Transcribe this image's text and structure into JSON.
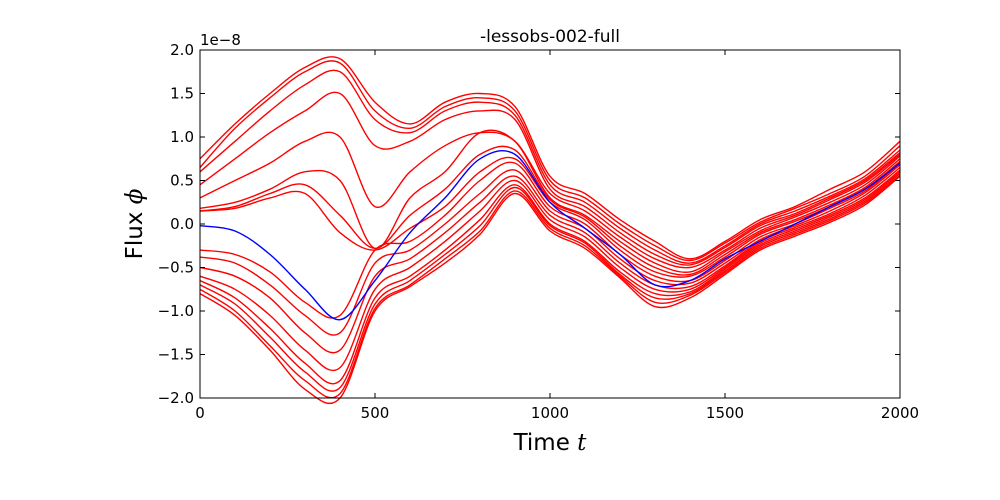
{
  "chart_data": {
    "type": "line",
    "title": "-lessobs-002-full",
    "xlabel": "Time",
    "xlabel_var": "t",
    "ylabel": "Flux",
    "ylabel_var": "ϕ",
    "y_offset_label": "1e−8",
    "xlim": [
      0,
      2000
    ],
    "ylim": [
      -2.0,
      2.0
    ],
    "x_ticks": [
      "0",
      "500",
      "1000",
      "1500",
      "2000"
    ],
    "y_ticks": [
      "−2.0",
      "−1.5",
      "−1.0",
      "−0.5",
      "0.0",
      "0.5",
      "1.0",
      "1.5",
      "2.0"
    ],
    "grid": false,
    "colors": {
      "reference": "#0000ff",
      "ensemble": "#ff0000"
    },
    "x": [
      0,
      100,
      200,
      300,
      400,
      500,
      600,
      700,
      800,
      900,
      1000,
      1100,
      1200,
      1300,
      1400,
      1500,
      1600,
      1700,
      1800,
      1900,
      2000
    ],
    "series": [
      {
        "role": "reference",
        "values": [
          -0.02,
          -0.08,
          -0.35,
          -0.75,
          -1.1,
          -0.65,
          -0.1,
          0.3,
          0.75,
          0.8,
          0.25,
          -0.05,
          -0.35,
          -0.7,
          -0.65,
          -0.4,
          -0.2,
          0.0,
          0.2,
          0.4,
          0.7
        ]
      },
      {
        "role": "ensemble",
        "values": [
          0.75,
          1.15,
          1.5,
          1.8,
          1.9,
          1.4,
          1.15,
          1.4,
          1.5,
          1.35,
          0.55,
          0.35,
          0.05,
          -0.2,
          -0.4,
          -0.2,
          0.05,
          0.2,
          0.4,
          0.6,
          0.95
        ]
      },
      {
        "role": "ensemble",
        "values": [
          0.65,
          1.1,
          1.45,
          1.75,
          1.85,
          1.3,
          1.1,
          1.35,
          1.45,
          1.3,
          0.5,
          0.3,
          0.0,
          -0.25,
          -0.42,
          -0.22,
          0.02,
          0.18,
          0.35,
          0.55,
          0.9
        ]
      },
      {
        "role": "ensemble",
        "values": [
          0.6,
          0.95,
          1.3,
          1.6,
          1.75,
          1.2,
          1.05,
          1.3,
          1.4,
          1.25,
          0.45,
          0.25,
          -0.05,
          -0.3,
          -0.45,
          -0.25,
          0.0,
          0.15,
          0.32,
          0.52,
          0.85
        ]
      },
      {
        "role": "ensemble",
        "values": [
          0.45,
          0.75,
          1.05,
          1.3,
          1.5,
          0.9,
          0.95,
          1.2,
          1.3,
          1.2,
          0.4,
          0.2,
          -0.1,
          -0.35,
          -0.47,
          -0.27,
          -0.02,
          0.12,
          0.3,
          0.5,
          0.82
        ]
      },
      {
        "role": "ensemble",
        "values": [
          0.3,
          0.5,
          0.7,
          0.95,
          1.0,
          0.2,
          0.6,
          0.9,
          1.05,
          0.95,
          0.35,
          0.15,
          -0.15,
          -0.4,
          -0.5,
          -0.3,
          -0.05,
          0.1,
          0.28,
          0.48,
          0.8
        ]
      },
      {
        "role": "ensemble",
        "values": [
          0.18,
          0.25,
          0.4,
          0.6,
          0.5,
          -0.28,
          0.3,
          0.6,
          1.05,
          0.95,
          0.3,
          0.1,
          -0.2,
          -0.45,
          -0.55,
          -0.32,
          -0.08,
          0.08,
          0.25,
          0.45,
          0.78
        ]
      },
      {
        "role": "ensemble",
        "values": [
          0.15,
          0.2,
          0.35,
          0.45,
          0.1,
          -0.28,
          0.1,
          0.4,
          0.8,
          0.85,
          0.28,
          0.08,
          -0.25,
          -0.5,
          -0.58,
          -0.35,
          -0.1,
          0.05,
          0.22,
          0.42,
          0.75
        ]
      },
      {
        "role": "ensemble",
        "values": [
          0.15,
          0.18,
          0.3,
          0.35,
          -0.1,
          -0.3,
          -0.05,
          0.2,
          0.6,
          0.75,
          0.25,
          0.05,
          -0.3,
          -0.55,
          -0.6,
          -0.38,
          -0.12,
          0.03,
          0.2,
          0.4,
          0.72
        ]
      },
      {
        "role": "ensemble",
        "values": [
          -0.3,
          -0.35,
          -0.55,
          -0.9,
          -1.05,
          -0.3,
          -0.2,
          0.1,
          0.5,
          0.7,
          0.2,
          0.0,
          -0.35,
          -0.6,
          -0.65,
          -0.42,
          -0.15,
          0.0,
          0.18,
          0.38,
          0.7
        ]
      },
      {
        "role": "ensemble",
        "values": [
          -0.38,
          -0.45,
          -0.7,
          -1.05,
          -1.25,
          -0.45,
          -0.3,
          0.0,
          0.35,
          0.62,
          0.15,
          -0.05,
          -0.4,
          -0.65,
          -0.68,
          -0.45,
          -0.18,
          -0.02,
          0.15,
          0.36,
          0.68
        ]
      },
      {
        "role": "ensemble",
        "values": [
          -0.5,
          -0.6,
          -0.85,
          -1.25,
          -1.45,
          -0.6,
          -0.4,
          -0.1,
          0.25,
          0.55,
          0.1,
          -0.1,
          -0.45,
          -0.7,
          -0.72,
          -0.48,
          -0.2,
          -0.04,
          0.12,
          0.33,
          0.65
        ]
      },
      {
        "role": "ensemble",
        "values": [
          -0.6,
          -0.75,
          -1.05,
          -1.45,
          -1.65,
          -0.75,
          -0.5,
          -0.2,
          0.15,
          0.5,
          0.05,
          -0.15,
          -0.5,
          -0.75,
          -0.75,
          -0.5,
          -0.22,
          -0.06,
          0.1,
          0.3,
          0.62
        ]
      },
      {
        "role": "ensemble",
        "values": [
          -0.65,
          -0.85,
          -1.2,
          -1.6,
          -1.8,
          -0.85,
          -0.6,
          -0.3,
          0.05,
          0.45,
          0.0,
          -0.2,
          -0.55,
          -0.8,
          -0.78,
          -0.52,
          -0.24,
          -0.08,
          0.08,
          0.28,
          0.6
        ]
      },
      {
        "role": "ensemble",
        "values": [
          -0.7,
          -0.92,
          -1.3,
          -1.7,
          -1.88,
          -0.92,
          -0.65,
          -0.35,
          -0.02,
          0.42,
          -0.02,
          -0.22,
          -0.58,
          -0.85,
          -0.8,
          -0.54,
          -0.26,
          -0.1,
          0.06,
          0.26,
          0.58
        ]
      },
      {
        "role": "ensemble",
        "values": [
          -0.75,
          -1.0,
          -1.4,
          -1.8,
          -1.95,
          -0.97,
          -0.7,
          -0.4,
          -0.08,
          0.38,
          -0.05,
          -0.25,
          -0.6,
          -0.9,
          -0.82,
          -0.56,
          -0.28,
          -0.12,
          0.04,
          0.24,
          0.56
        ]
      },
      {
        "role": "ensemble",
        "values": [
          -0.8,
          -1.05,
          -1.45,
          -1.9,
          -2.0,
          -1.0,
          -0.72,
          -0.45,
          -0.12,
          0.35,
          -0.08,
          -0.28,
          -0.62,
          -0.95,
          -0.85,
          -0.58,
          -0.3,
          -0.14,
          0.02,
          0.22,
          0.55
        ]
      }
    ]
  }
}
